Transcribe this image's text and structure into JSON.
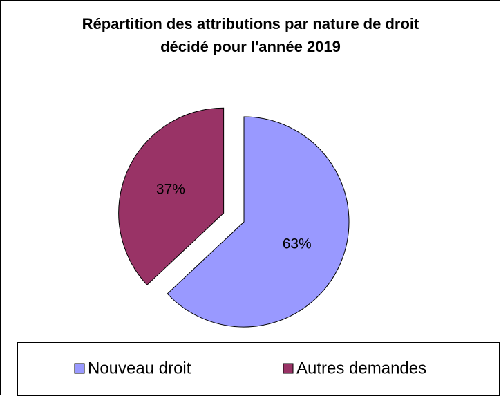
{
  "chart_data": {
    "type": "pie",
    "title": "Répartition des attributions par nature de droit décidé pour l'année 2019",
    "categories": [
      "Nouveau droit",
      "Autres demandes"
    ],
    "values": [
      63,
      37
    ],
    "value_labels": [
      "63%",
      "37%"
    ],
    "colors": [
      "#9999ff",
      "#993366"
    ],
    "exploded": [
      false,
      true
    ],
    "legend": "bottom"
  }
}
